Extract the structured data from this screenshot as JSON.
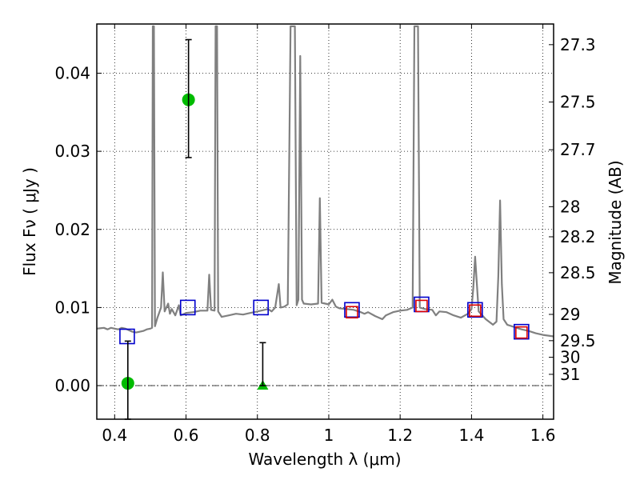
{
  "chart_data": {
    "type": "line",
    "xlabel": "Wavelength  λ (μm)",
    "ylabel": "Flux  Fν  ( μJy )",
    "ylabel_right": "Magnitude (AB)",
    "xlim": [
      0.35,
      1.63
    ],
    "ylim": [
      -0.0043,
      0.0463
    ],
    "grid": true,
    "x_ticks": [
      {
        "value": 0.4,
        "label": "0.4"
      },
      {
        "value": 0.6,
        "label": "0.6"
      },
      {
        "value": 0.8,
        "label": "0.8"
      },
      {
        "value": 1.0,
        "label": "1"
      },
      {
        "value": 1.2,
        "label": "1.2"
      },
      {
        "value": 1.4,
        "label": "1.4"
      },
      {
        "value": 1.6,
        "label": "1.6"
      }
    ],
    "y_ticks": [
      {
        "value": 0.0,
        "label": "0.00"
      },
      {
        "value": 0.01,
        "label": "0.01"
      },
      {
        "value": 0.02,
        "label": "0.02"
      },
      {
        "value": 0.03,
        "label": "0.03"
      },
      {
        "value": 0.04,
        "label": "0.04"
      }
    ],
    "mag_ticks": [
      {
        "value": 27.3,
        "label": "27.3"
      },
      {
        "value": 27.5,
        "label": "27.5"
      },
      {
        "value": 27.7,
        "label": "27.7"
      },
      {
        "value": 28,
        "label": "28"
      },
      {
        "value": 28.2,
        "label": "28.2"
      },
      {
        "value": 28.5,
        "label": "28.5"
      },
      {
        "value": 29,
        "label": "29"
      },
      {
        "value": 29.5,
        "label": "29.5"
      },
      {
        "value": 30,
        "label": "30"
      },
      {
        "value": 31,
        "label": "31"
      }
    ],
    "series": [
      {
        "kind": "line",
        "color": "#808080",
        "points": [
          [
            0.35,
            0.0073
          ],
          [
            0.37,
            0.0074
          ],
          [
            0.38,
            0.0072
          ],
          [
            0.39,
            0.0074
          ],
          [
            0.4,
            0.0073
          ],
          [
            0.41,
            0.0072
          ],
          [
            0.42,
            0.0074
          ],
          [
            0.43,
            0.0073
          ],
          [
            0.44,
            0.0071
          ],
          [
            0.45,
            0.0069
          ],
          [
            0.46,
            0.0068
          ],
          [
            0.47,
            0.0069
          ],
          [
            0.48,
            0.007
          ],
          [
            0.49,
            0.0072
          ],
          [
            0.5,
            0.0073
          ],
          [
            0.505,
            0.0074
          ],
          [
            0.507,
            0.046
          ],
          [
            0.51,
            0.046
          ],
          [
            0.513,
            0.0076
          ],
          [
            0.52,
            0.0087
          ],
          [
            0.53,
            0.01
          ],
          [
            0.535,
            0.0145
          ],
          [
            0.54,
            0.0095
          ],
          [
            0.55,
            0.0105
          ],
          [
            0.555,
            0.0092
          ],
          [
            0.56,
            0.0098
          ],
          [
            0.57,
            0.009
          ],
          [
            0.58,
            0.0103
          ],
          [
            0.585,
            0.009
          ],
          [
            0.6,
            0.0093
          ],
          [
            0.62,
            0.0094
          ],
          [
            0.64,
            0.0096
          ],
          [
            0.66,
            0.0096
          ],
          [
            0.665,
            0.0142
          ],
          [
            0.67,
            0.0097
          ],
          [
            0.68,
            0.0096
          ],
          [
            0.683,
            0.046
          ],
          [
            0.687,
            0.046
          ],
          [
            0.69,
            0.0095
          ],
          [
            0.7,
            0.0088
          ],
          [
            0.72,
            0.009
          ],
          [
            0.74,
            0.0092
          ],
          [
            0.76,
            0.0091
          ],
          [
            0.78,
            0.0093
          ],
          [
            0.8,
            0.0095
          ],
          [
            0.81,
            0.0096
          ],
          [
            0.83,
            0.0098
          ],
          [
            0.84,
            0.0095
          ],
          [
            0.85,
            0.01
          ],
          [
            0.86,
            0.013
          ],
          [
            0.865,
            0.01
          ],
          [
            0.875,
            0.0101
          ],
          [
            0.885,
            0.0104
          ],
          [
            0.893,
            0.046
          ],
          [
            0.905,
            0.046
          ],
          [
            0.91,
            0.0103
          ],
          [
            0.915,
            0.011
          ],
          [
            0.92,
            0.0422
          ],
          [
            0.925,
            0.011
          ],
          [
            0.93,
            0.0105
          ],
          [
            0.95,
            0.0104
          ],
          [
            0.97,
            0.0105
          ],
          [
            0.975,
            0.024
          ],
          [
            0.98,
            0.0106
          ],
          [
            1.0,
            0.0104
          ],
          [
            1.01,
            0.011
          ],
          [
            1.02,
            0.0101
          ],
          [
            1.03,
            0.0099
          ],
          [
            1.05,
            0.0098
          ],
          [
            1.07,
            0.0097
          ],
          [
            1.09,
            0.0094
          ],
          [
            1.1,
            0.0092
          ],
          [
            1.11,
            0.0094
          ],
          [
            1.13,
            0.0089
          ],
          [
            1.15,
            0.0085
          ],
          [
            1.16,
            0.009
          ],
          [
            1.18,
            0.0094
          ],
          [
            1.2,
            0.0096
          ],
          [
            1.22,
            0.0097
          ],
          [
            1.235,
            0.01
          ],
          [
            1.24,
            0.046
          ],
          [
            1.25,
            0.046
          ],
          [
            1.255,
            0.01
          ],
          [
            1.27,
            0.0098
          ],
          [
            1.29,
            0.0097
          ],
          [
            1.3,
            0.009
          ],
          [
            1.31,
            0.0095
          ],
          [
            1.33,
            0.0094
          ],
          [
            1.35,
            0.009
          ],
          [
            1.37,
            0.0087
          ],
          [
            1.39,
            0.0092
          ],
          [
            1.4,
            0.0098
          ],
          [
            1.405,
            0.0125
          ],
          [
            1.41,
            0.0165
          ],
          [
            1.415,
            0.013
          ],
          [
            1.42,
            0.0095
          ],
          [
            1.44,
            0.0085
          ],
          [
            1.46,
            0.0078
          ],
          [
            1.47,
            0.0082
          ],
          [
            1.475,
            0.014
          ],
          [
            1.48,
            0.0237
          ],
          [
            1.485,
            0.013
          ],
          [
            1.49,
            0.0085
          ],
          [
            1.5,
            0.0078
          ],
          [
            1.52,
            0.0075
          ],
          [
            1.54,
            0.0072
          ],
          [
            1.56,
            0.007
          ],
          [
            1.58,
            0.0067
          ],
          [
            1.6,
            0.0065
          ],
          [
            1.63,
            0.0063
          ]
        ]
      },
      {
        "kind": "squares",
        "color": "#0000cc",
        "points": [
          [
            0.435,
            0.0063
          ],
          [
            0.605,
            0.01
          ],
          [
            0.81,
            0.01
          ],
          [
            1.065,
            0.0097
          ],
          [
            1.26,
            0.0104
          ],
          [
            1.41,
            0.0097
          ],
          [
            1.54,
            0.0069
          ]
        ]
      },
      {
        "kind": "squares",
        "color": "#dd0000",
        "points": [
          [
            1.065,
            0.0094
          ],
          [
            1.26,
            0.0102
          ],
          [
            1.41,
            0.0096
          ],
          [
            1.54,
            0.0068
          ]
        ]
      },
      {
        "kind": "circles",
        "color": "#00bb00",
        "points": [
          [
            0.607,
            0.0366
          ],
          [
            0.437,
            0.0003
          ]
        ]
      },
      {
        "kind": "triangles",
        "color": "#00bb00",
        "points": [
          [
            0.815,
            0.0
          ]
        ]
      },
      {
        "kind": "errorbars",
        "color": "#000000",
        "bars": [
          [
            0.607,
            0.0292,
            0.0443
          ],
          [
            0.437,
            -0.0043,
            0.0057
          ],
          [
            0.815,
            0.0,
            0.0055
          ]
        ]
      }
    ]
  }
}
